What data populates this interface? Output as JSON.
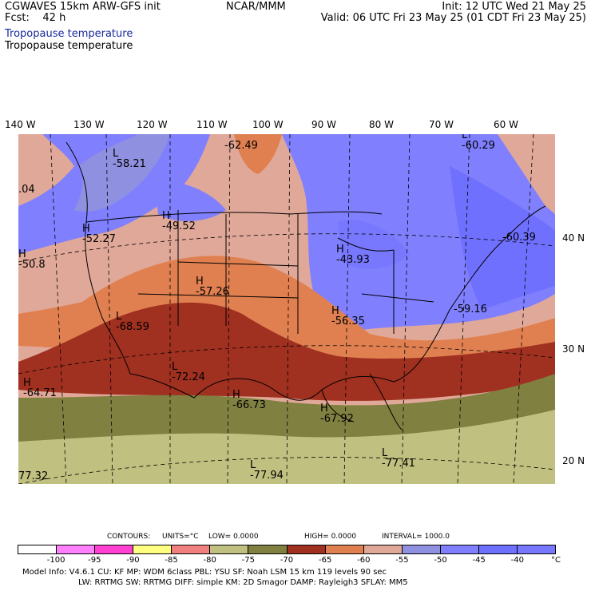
{
  "header": {
    "model": "CGWAVES 15km ARW-GFS init",
    "fcst_label": "Fcst:",
    "fcst_value": "42 h",
    "center": "NCAR/MMM",
    "init": "Init: 12 UTC Wed 21 May 25",
    "valid": "Valid: 06 UTC Fri 23 May 25 (01 CDT Fri 23 May 25)",
    "subtitle1": "Tropopause temperature",
    "subtitle2": "Tropopause temperature"
  },
  "lon_labels": [
    "140 W",
    "130 W",
    "120 W",
    "110 W",
    "100 W",
    "90 W",
    "80 W",
    "70 W",
    "60 W"
  ],
  "lat_labels": [
    "40 N",
    "30 N",
    "20 N"
  ],
  "extrema": [
    {
      "hl": "L",
      "value": "-58.21"
    },
    {
      "hl": "",
      "value": "-62.49"
    },
    {
      "hl": "L",
      "value": "-60.29"
    },
    {
      "hl": "",
      "value": ".04"
    },
    {
      "hl": "H",
      "value": "-49.52"
    },
    {
      "hl": "H",
      "value": "-52.27"
    },
    {
      "hl": "H",
      "value": "-50.8"
    },
    {
      "hl": "",
      "value": "-60.39"
    },
    {
      "hl": "H",
      "value": "-43.93"
    },
    {
      "hl": "H",
      "value": "-57.26"
    },
    {
      "hl": "L",
      "value": "-68.59"
    },
    {
      "hl": "H",
      "value": "-56.35"
    },
    {
      "hl": "",
      "value": "-59.16"
    },
    {
      "hl": "L",
      "value": "-72.24"
    },
    {
      "hl": "H",
      "value": "-64.71"
    },
    {
      "hl": "H",
      "value": "-66.73"
    },
    {
      "hl": "H",
      "value": "-67.92"
    },
    {
      "hl": "L",
      "value": "-77.41"
    },
    {
      "hl": "L",
      "value": "-77.94"
    },
    {
      "hl": "",
      "value": "77.32"
    }
  ],
  "contours": {
    "label": "CONTOURS:",
    "units": "UNITS=°C",
    "low": "LOW=  0.0000",
    "high": "HIGH=  0.0000",
    "interval": "INTERVAL=   1000.0"
  },
  "colorbar": {
    "colors": [
      "#ffffff",
      "#ff80ff",
      "#ff40d0",
      "#ffff80",
      "#f08080",
      "#c0c080",
      "#808040",
      "#a03020",
      "#e08050",
      "#e0a898",
      "#9090e0",
      "#8080ff",
      "#7070ff",
      "#7878ff"
    ],
    "ticks": [
      "-100",
      "-95",
      "-90",
      "-85",
      "-80",
      "-75",
      "-70",
      "-65",
      "-60",
      "-55",
      "-50",
      "-45",
      "-40"
    ],
    "unit": "°C"
  },
  "footer": {
    "line1": "Model Info: V4.6.1    CU: KF     MP: WDM 6class   PBL: YSU          SF: Noah LSM      15 km   119 levels   90 sec",
    "line2": "LW: RRTMG    SW: RRTMG   DIFF: simple KM: 2D Smagor DAMP: Rayleigh3   SFLAY: MM5"
  }
}
